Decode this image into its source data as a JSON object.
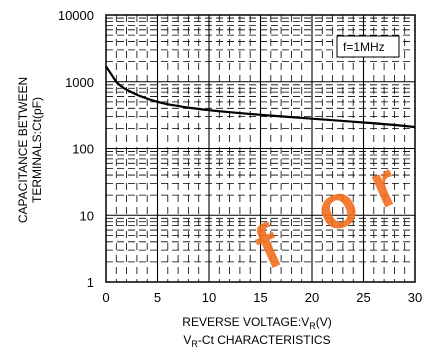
{
  "chart_data": {
    "type": "line",
    "title": "",
    "caption_prefix": "V",
    "caption_sub": "R",
    "caption_suffix": "-Ct CHARACTERISTICS",
    "xlabel_prefix": "REVERSE VOLTAGE:V",
    "xlabel_sub": "R",
    "xlabel_suffix": "(V)",
    "ylabel_line1": "CAPACITANCE BETWEEN",
    "ylabel_line2": "TERMINALS:Ct(pF)",
    "xlim": [
      0,
      30
    ],
    "ylim": [
      1,
      10000
    ],
    "yscale": "log",
    "grid": true,
    "x_ticks": [
      0,
      5,
      10,
      15,
      20,
      25,
      30
    ],
    "y_ticks": [
      1,
      10,
      100,
      1000,
      10000
    ],
    "x_tick_labels": [
      "0",
      "5",
      "10",
      "15",
      "20",
      "25",
      "30"
    ],
    "y_tick_labels": [
      "1",
      "10",
      "100",
      "1000",
      "10000"
    ],
    "legend_text": "f=1MHz",
    "legend_placement": "top-right",
    "series": [
      {
        "x": [
          0,
          0.5,
          1,
          1.5,
          2,
          3,
          4,
          5,
          6,
          8,
          10,
          12,
          15,
          18,
          20,
          22,
          25,
          28,
          30
        ],
        "y": [
          1700,
          1300,
          1000,
          850,
          760,
          640,
          560,
          500,
          460,
          410,
          375,
          350,
          320,
          295,
          280,
          265,
          245,
          225,
          210
        ]
      }
    ],
    "line_color": "#000000"
  },
  "watermark": {
    "text": "for",
    "color": "#f37021"
  }
}
